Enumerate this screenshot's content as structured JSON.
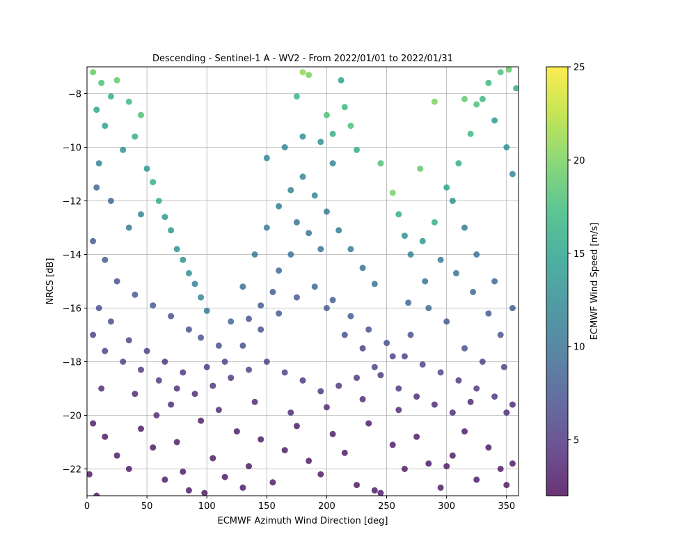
{
  "chart_data": {
    "type": "scatter",
    "title": "Descending - Sentinel-1 A - WV2 - From 2022/01/01 to 2022/01/31",
    "xlabel": "ECMWF Azimuth Wind Direction [deg]",
    "ylabel": "NRCS [dB]",
    "xlim": [
      0,
      360
    ],
    "ylim": [
      -23,
      -7
    ],
    "xticks": [
      0,
      50,
      100,
      150,
      200,
      250,
      300,
      350
    ],
    "yticks": [
      -22,
      -20,
      -18,
      -16,
      -14,
      -12,
      -10,
      -8
    ],
    "grid": true,
    "colorbar": {
      "label": "ECMWF Wind Speed [m/s]",
      "range": [
        2,
        25
      ],
      "ticks": [
        5,
        10,
        15,
        20,
        25
      ],
      "colormap": "viridis"
    },
    "colormap_stops": [
      "#440154",
      "#482878",
      "#3e4989",
      "#31688e",
      "#26828e",
      "#1f9e89",
      "#35b779",
      "#6ece58",
      "#b5de2b",
      "#fde725"
    ],
    "marker_alpha": 0.8,
    "note_values": "representative sample of the dense point cloud; [direction_deg, nrcs_db, wind_speed_ms]",
    "points": [
      [
        5,
        -7.2,
        19
      ],
      [
        12,
        -7.6,
        18
      ],
      [
        20,
        -8.1,
        16
      ],
      [
        8,
        -8.6,
        15
      ],
      [
        25,
        -7.5,
        19
      ],
      [
        35,
        -8.3,
        17
      ],
      [
        45,
        -8.8,
        18
      ],
      [
        40,
        -9.6,
        16
      ],
      [
        15,
        -9.2,
        15
      ],
      [
        30,
        -10.1,
        13
      ],
      [
        10,
        -10.6,
        12
      ],
      [
        50,
        -10.8,
        14
      ],
      [
        55,
        -11.3,
        16
      ],
      [
        60,
        -12.0,
        16
      ],
      [
        65,
        -12.6,
        14
      ],
      [
        70,
        -13.1,
        14
      ],
      [
        75,
        -13.8,
        13
      ],
      [
        80,
        -14.2,
        13
      ],
      [
        85,
        -14.7,
        13
      ],
      [
        90,
        -15.1,
        12
      ],
      [
        95,
        -15.6,
        12
      ],
      [
        100,
        -16.1,
        11
      ],
      [
        45,
        -12.5,
        12
      ],
      [
        35,
        -13.0,
        11
      ],
      [
        20,
        -12.0,
        9
      ],
      [
        8,
        -11.5,
        9
      ],
      [
        5,
        -13.5,
        8
      ],
      [
        15,
        -14.2,
        8
      ],
      [
        25,
        -15.0,
        7
      ],
      [
        40,
        -15.5,
        8
      ],
      [
        55,
        -15.9,
        8
      ],
      [
        70,
        -16.3,
        7
      ],
      [
        85,
        -16.8,
        7
      ],
      [
        95,
        -17.1,
        7
      ],
      [
        110,
        -17.4,
        7
      ],
      [
        120,
        -16.5,
        9
      ],
      [
        130,
        -15.2,
        10
      ],
      [
        140,
        -14.0,
        11
      ],
      [
        150,
        -13.0,
        11
      ],
      [
        160,
        -12.2,
        11
      ],
      [
        170,
        -11.6,
        12
      ],
      [
        180,
        -11.1,
        12
      ],
      [
        190,
        -11.8,
        12
      ],
      [
        200,
        -12.4,
        11
      ],
      [
        210,
        -13.1,
        11
      ],
      [
        220,
        -13.8,
        11
      ],
      [
        230,
        -14.5,
        10
      ],
      [
        240,
        -15.1,
        10
      ],
      [
        150,
        -10.4,
        12
      ],
      [
        165,
        -10.0,
        12
      ],
      [
        180,
        -9.6,
        13
      ],
      [
        195,
        -9.8,
        13
      ],
      [
        205,
        -10.6,
        12
      ],
      [
        175,
        -8.1,
        17
      ],
      [
        185,
        -7.3,
        20
      ],
      [
        180,
        -7.2,
        21
      ],
      [
        200,
        -8.8,
        18
      ],
      [
        205,
        -9.5,
        16
      ],
      [
        212,
        -7.5,
        15
      ],
      [
        215,
        -8.5,
        17
      ],
      [
        220,
        -9.2,
        18
      ],
      [
        225,
        -10.1,
        16
      ],
      [
        245,
        -10.6,
        18
      ],
      [
        255,
        -11.7,
        20
      ],
      [
        260,
        -12.5,
        16
      ],
      [
        265,
        -13.3,
        13
      ],
      [
        270,
        -14.0,
        12
      ],
      [
        280,
        -13.5,
        14
      ],
      [
        290,
        -12.8,
        16
      ],
      [
        300,
        -11.5,
        15
      ],
      [
        310,
        -10.6,
        16
      ],
      [
        320,
        -9.5,
        17
      ],
      [
        330,
        -8.2,
        17
      ],
      [
        335,
        -7.6,
        17
      ],
      [
        345,
        -7.2,
        18
      ],
      [
        352,
        -7.1,
        19
      ],
      [
        358,
        -7.8,
        16
      ],
      [
        340,
        -9.0,
        14
      ],
      [
        350,
        -10.0,
        13
      ],
      [
        355,
        -11.0,
        12
      ],
      [
        325,
        -8.4,
        18
      ],
      [
        315,
        -8.2,
        19
      ],
      [
        290,
        -8.3,
        20
      ],
      [
        278,
        -10.8,
        19
      ],
      [
        305,
        -12.0,
        13
      ],
      [
        315,
        -13.0,
        11
      ],
      [
        325,
        -14.0,
        10
      ],
      [
        340,
        -15.0,
        9
      ],
      [
        355,
        -16.0,
        8
      ],
      [
        345,
        -17.0,
        7
      ],
      [
        330,
        -18.0,
        6
      ],
      [
        315,
        -17.5,
        7
      ],
      [
        300,
        -16.5,
        8
      ],
      [
        285,
        -16.0,
        9
      ],
      [
        270,
        -17.0,
        7
      ],
      [
        255,
        -17.8,
        6
      ],
      [
        240,
        -18.2,
        6
      ],
      [
        225,
        -18.6,
        5
      ],
      [
        210,
        -18.9,
        5
      ],
      [
        195,
        -19.1,
        5
      ],
      [
        180,
        -18.7,
        5
      ],
      [
        165,
        -18.4,
        6
      ],
      [
        150,
        -18.0,
        6
      ],
      [
        135,
        -18.3,
        6
      ],
      [
        120,
        -18.6,
        5
      ],
      [
        105,
        -18.9,
        5
      ],
      [
        90,
        -19.2,
        4
      ],
      [
        75,
        -19.0,
        4
      ],
      [
        60,
        -18.7,
        5
      ],
      [
        45,
        -18.3,
        5
      ],
      [
        30,
        -18.0,
        6
      ],
      [
        15,
        -17.6,
        6
      ],
      [
        5,
        -17.0,
        6
      ],
      [
        10,
        -16.0,
        7
      ],
      [
        20,
        -16.5,
        7
      ],
      [
        35,
        -17.2,
        6
      ],
      [
        50,
        -17.6,
        6
      ],
      [
        65,
        -18.0,
        5
      ],
      [
        80,
        -18.4,
        5
      ],
      [
        100,
        -18.2,
        5
      ],
      [
        115,
        -18.0,
        6
      ],
      [
        130,
        -17.4,
        7
      ],
      [
        145,
        -16.8,
        7
      ],
      [
        160,
        -16.2,
        8
      ],
      [
        175,
        -15.6,
        8
      ],
      [
        190,
        -15.2,
        9
      ],
      [
        205,
        -15.7,
        8
      ],
      [
        220,
        -16.3,
        8
      ],
      [
        235,
        -16.8,
        7
      ],
      [
        250,
        -17.3,
        7
      ],
      [
        265,
        -17.8,
        6
      ],
      [
        280,
        -18.1,
        6
      ],
      [
        295,
        -18.4,
        6
      ],
      [
        310,
        -18.7,
        5
      ],
      [
        325,
        -19.0,
        5
      ],
      [
        340,
        -19.3,
        5
      ],
      [
        355,
        -19.6,
        4
      ],
      [
        348,
        -18.2,
        6
      ],
      [
        335,
        -16.2,
        8
      ],
      [
        322,
        -15.4,
        9
      ],
      [
        308,
        -14.7,
        10
      ],
      [
        295,
        -14.2,
        11
      ],
      [
        282,
        -15.0,
        10
      ],
      [
        268,
        -15.8,
        9
      ],
      [
        170,
        -14.0,
        10
      ],
      [
        160,
        -14.6,
        9
      ],
      [
        185,
        -13.2,
        10
      ],
      [
        195,
        -13.8,
        10
      ],
      [
        175,
        -12.8,
        10
      ],
      [
        155,
        -15.4,
        8
      ],
      [
        145,
        -15.9,
        8
      ],
      [
        135,
        -16.4,
        7
      ],
      [
        200,
        -16.0,
        8
      ],
      [
        215,
        -17.0,
        7
      ],
      [
        230,
        -17.5,
        6
      ],
      [
        245,
        -18.5,
        5
      ],
      [
        260,
        -19.0,
        5
      ],
      [
        275,
        -19.3,
        4
      ],
      [
        290,
        -19.6,
        4
      ],
      [
        305,
        -19.9,
        4
      ],
      [
        5,
        -20.3,
        3
      ],
      [
        15,
        -20.8,
        3
      ],
      [
        25,
        -21.5,
        3
      ],
      [
        35,
        -22.0,
        3
      ],
      [
        45,
        -20.5,
        3
      ],
      [
        55,
        -21.2,
        3
      ],
      [
        65,
        -22.4,
        3
      ],
      [
        75,
        -21.0,
        3
      ],
      [
        85,
        -22.8,
        3
      ],
      [
        95,
        -20.2,
        3
      ],
      [
        105,
        -21.6,
        3
      ],
      [
        115,
        -22.3,
        3
      ],
      [
        125,
        -20.6,
        3
      ],
      [
        135,
        -21.9,
        3
      ],
      [
        145,
        -20.9,
        3
      ],
      [
        155,
        -22.5,
        3
      ],
      [
        165,
        -21.3,
        3
      ],
      [
        175,
        -20.4,
        3
      ],
      [
        185,
        -21.7,
        3
      ],
      [
        195,
        -22.2,
        3
      ],
      [
        205,
        -20.7,
        3
      ],
      [
        215,
        -21.4,
        3
      ],
      [
        225,
        -22.6,
        3
      ],
      [
        235,
        -20.3,
        3
      ],
      [
        245,
        -22.9,
        3
      ],
      [
        255,
        -21.1,
        3
      ],
      [
        265,
        -22.0,
        3
      ],
      [
        275,
        -20.8,
        3
      ],
      [
        285,
        -21.8,
        3
      ],
      [
        295,
        -22.7,
        3
      ],
      [
        305,
        -21.5,
        3
      ],
      [
        315,
        -20.6,
        3
      ],
      [
        325,
        -22.4,
        3
      ],
      [
        335,
        -21.2,
        3
      ],
      [
        345,
        -22.0,
        3
      ],
      [
        355,
        -21.8,
        3
      ],
      [
        2,
        -22.2,
        3
      ],
      [
        8,
        -23.0,
        3
      ],
      [
        80,
        -22.1,
        3
      ],
      [
        98,
        -22.9,
        3
      ],
      [
        130,
        -22.7,
        3
      ],
      [
        240,
        -22.8,
        3
      ],
      [
        300,
        -21.9,
        3
      ],
      [
        350,
        -22.6,
        3
      ],
      [
        40,
        -19.2,
        4
      ],
      [
        70,
        -19.6,
        4
      ],
      [
        110,
        -19.8,
        4
      ],
      [
        140,
        -19.5,
        4
      ],
      [
        170,
        -19.9,
        4
      ],
      [
        200,
        -19.7,
        4
      ],
      [
        230,
        -19.4,
        4
      ],
      [
        260,
        -19.8,
        4
      ],
      [
        320,
        -19.5,
        4
      ],
      [
        350,
        -19.9,
        4
      ],
      [
        12,
        -19.0,
        4
      ],
      [
        58,
        -20.0,
        4
      ]
    ]
  }
}
